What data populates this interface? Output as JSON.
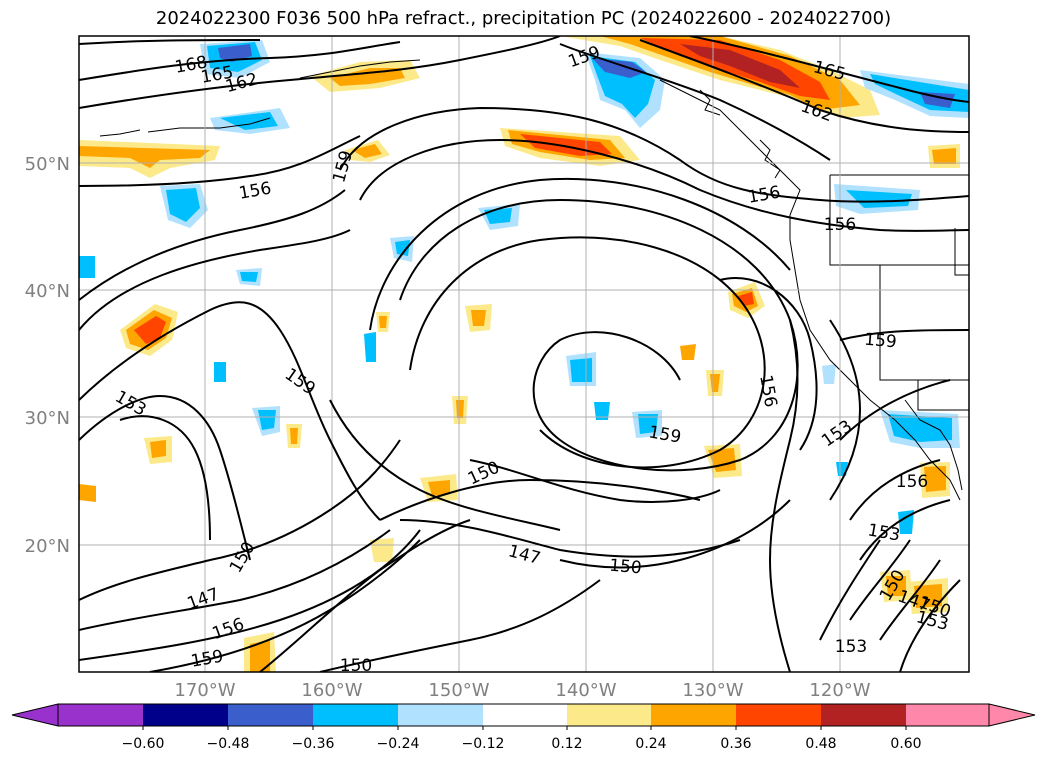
{
  "title": "2024022300 F036 500 hPa refract., precipitation PC (2024022600 - 2024022700)",
  "map": {
    "lon_labels": [
      "170°W",
      "160°W",
      "150°W",
      "140°W",
      "130°W",
      "120°W"
    ],
    "lat_labels": [
      "50°N",
      "40°N",
      "30°N",
      "20°N"
    ],
    "contour_labels": [
      {
        "text": "168",
        "angle": -10
      },
      {
        "text": "165",
        "angle": -10
      },
      {
        "text": "162",
        "angle": -15
      },
      {
        "text": "159",
        "angle": -20
      },
      {
        "text": "165",
        "angle": 15
      },
      {
        "text": "162",
        "angle": 20
      },
      {
        "text": "159",
        "angle": -75
      },
      {
        "text": "156",
        "angle": -10
      },
      {
        "text": "156",
        "angle": -10
      },
      {
        "text": "156",
        "angle": 0
      },
      {
        "text": "159",
        "angle": 5
      },
      {
        "text": "159",
        "angle": 35
      },
      {
        "text": "153",
        "angle": 30
      },
      {
        "text": "156",
        "angle": 80
      },
      {
        "text": "150",
        "angle": -25
      },
      {
        "text": "159",
        "angle": 10
      },
      {
        "text": "153",
        "angle": -35
      },
      {
        "text": "156",
        "angle": 0
      },
      {
        "text": "150",
        "angle": -60
      },
      {
        "text": "147",
        "angle": 15
      },
      {
        "text": "150",
        "angle": 5
      },
      {
        "text": "153",
        "angle": 10
      },
      {
        "text": "147",
        "angle": -20
      },
      {
        "text": "156",
        "angle": -20
      },
      {
        "text": "159",
        "angle": -10
      },
      {
        "text": "150",
        "angle": 0
      },
      {
        "text": "153",
        "angle": 0
      },
      {
        "text": "150",
        "angle": -60
      },
      {
        "text": "147",
        "angle": 20
      },
      {
        "text": "150",
        "angle": 20
      },
      {
        "text": "153",
        "angle": 15
      }
    ]
  },
  "colorbar": {
    "ticks": [
      "−0.60",
      "−0.48",
      "−0.36",
      "−0.24",
      "−0.12",
      "0.12",
      "0.24",
      "0.36",
      "0.48",
      "0.60"
    ],
    "colors": [
      "#9932cc",
      "#00008b",
      "#3a5fcd",
      "#00bfff",
      "#b0e2ff",
      "#ffffff",
      "#fce98a",
      "#ffa500",
      "#ff4500",
      "#b22222",
      "#ff88aa"
    ]
  },
  "colors": {
    "lightblue": "#b0e2ff",
    "deepskyblue": "#00bfff",
    "royalblue": "#3a5fcd",
    "navy": "#00008b",
    "yellow": "#fce98a",
    "orange": "#ffa500",
    "orangered": "#ff4500",
    "firebrick": "#b22222"
  }
}
